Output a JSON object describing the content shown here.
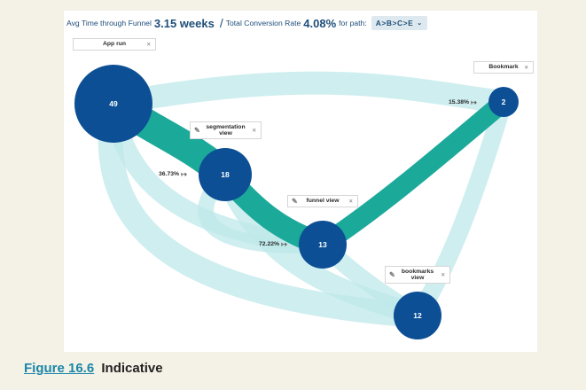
{
  "header": {
    "avg_time_label": "Avg Time through Funnel",
    "avg_time_value": "3.15 weeks",
    "separator": "/",
    "conversion_label": "Total Conversion Rate",
    "conversion_value": "4.08%",
    "path_label": "for path:",
    "path_value": "A>B>C>E",
    "caret": "⌄"
  },
  "steps": [
    {
      "id": "app-run",
      "label": "App run",
      "count": "49",
      "close": "×"
    },
    {
      "id": "segmentation-view",
      "label": "segmentation view",
      "count": "18",
      "close": "×",
      "pin": "✎"
    },
    {
      "id": "funnel-view",
      "label": "funnel view",
      "count": "13",
      "close": "×",
      "pin": "✎"
    },
    {
      "id": "bookmark",
      "label": "Bookmark",
      "count": "2",
      "close": "×"
    },
    {
      "id": "bookmarks-view",
      "label": "bookmarks view",
      "count": "12",
      "close": "×",
      "pin": "✎"
    }
  ],
  "conversions": [
    {
      "value": "36.73%",
      "arrow": "↦"
    },
    {
      "value": "72.22%",
      "arrow": "↦"
    },
    {
      "value": "15.38%",
      "arrow": "↦"
    }
  ],
  "colors": {
    "node": "#0c4f95",
    "main_flow": "#1ba99a",
    "secondary_flow": "#bfe8ea"
  },
  "caption": {
    "figure_ref": "Figure 16.6",
    "title": "Indicative"
  }
}
